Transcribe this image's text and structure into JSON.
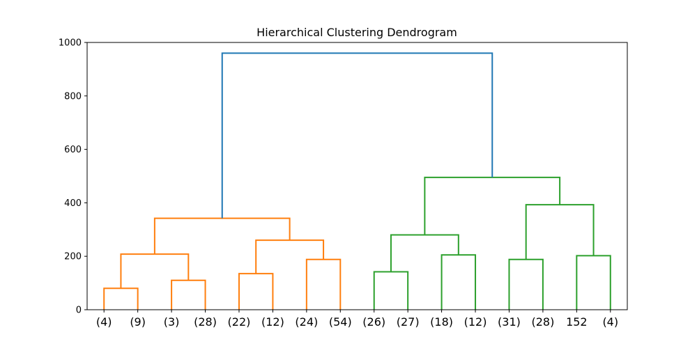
{
  "chart_data": {
    "type": "dendrogram",
    "title": "Hierarchical Clustering Dendrogram",
    "xlabel": "",
    "ylabel": "",
    "ylim": [
      0,
      1000
    ],
    "yticks": [
      0,
      200,
      400,
      600,
      800,
      1000
    ],
    "grid": false,
    "leaf_labels": [
      "(4)",
      "(9)",
      "(3)",
      "(28)",
      "(22)",
      "(12)",
      "(24)",
      "(54)",
      "(26)",
      "(27)",
      "(18)",
      "(12)",
      "(31)",
      "(28)",
      "152",
      "(4)"
    ],
    "colors": {
      "cluster_1": "#ff7f0e",
      "cluster_2": "#2ca02c",
      "above_threshold": "#1f77b4"
    },
    "merges": [
      {
        "left": "leaf:0",
        "right": "leaf:1",
        "height": 80,
        "color": "cluster_1"
      },
      {
        "left": "leaf:2",
        "right": "leaf:3",
        "height": 110,
        "color": "cluster_1"
      },
      {
        "left": "leaf:4",
        "right": "leaf:5",
        "height": 135,
        "color": "cluster_1"
      },
      {
        "left": "leaf:6",
        "right": "leaf:7",
        "height": 188,
        "color": "cluster_1"
      },
      {
        "left": "leaf:8",
        "right": "leaf:9",
        "height": 142,
        "color": "cluster_2"
      },
      {
        "left": "leaf:10",
        "right": "leaf:11",
        "height": 205,
        "color": "cluster_2"
      },
      {
        "left": "leaf:12",
        "right": "leaf:13",
        "height": 188,
        "color": "cluster_2"
      },
      {
        "left": "leaf:14",
        "right": "leaf:15",
        "height": 202,
        "color": "cluster_2"
      },
      {
        "left": "node:0",
        "right": "node:1",
        "height": 208,
        "color": "cluster_1"
      },
      {
        "left": "node:2",
        "right": "node:3",
        "height": 260,
        "color": "cluster_1"
      },
      {
        "left": "node:4",
        "right": "node:5",
        "height": 280,
        "color": "cluster_2"
      },
      {
        "left": "node:6",
        "right": "node:7",
        "height": 393,
        "color": "cluster_2"
      },
      {
        "left": "node:8",
        "right": "node:9",
        "height": 342,
        "color": "cluster_1"
      },
      {
        "left": "node:10",
        "right": "node:11",
        "height": 495,
        "color": "cluster_2"
      },
      {
        "left": "node:12",
        "right": "node:13",
        "height": 960,
        "color": "above_threshold"
      }
    ]
  }
}
